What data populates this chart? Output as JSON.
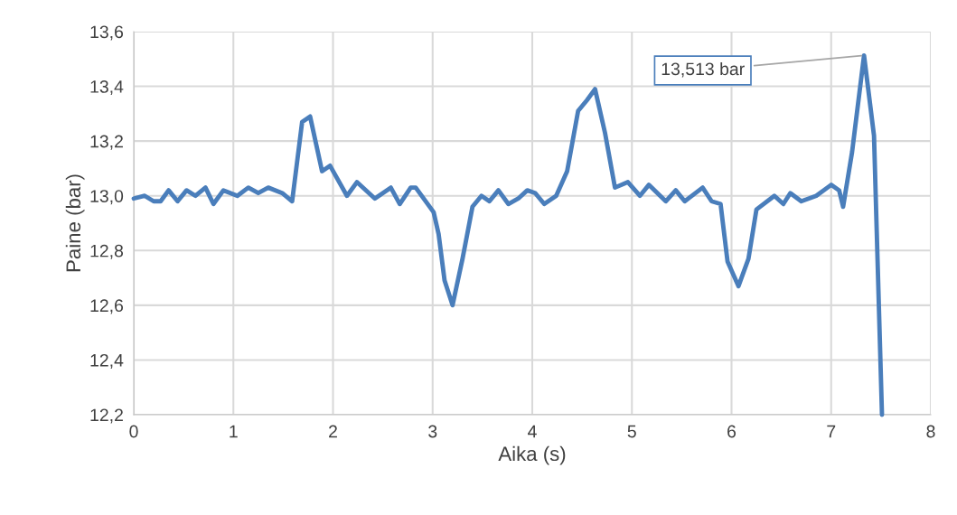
{
  "chart_data": {
    "type": "line",
    "xlabel": "Aika (s)",
    "ylabel": "Paine (bar)",
    "x": [
      0,
      0.11,
      0.2,
      0.27,
      0.35,
      0.44,
      0.53,
      0.62,
      0.72,
      0.8,
      0.9,
      1.04,
      1.15,
      1.25,
      1.35,
      1.49,
      1.59,
      1.69,
      1.77,
      1.89,
      1.97,
      2.14,
      2.24,
      2.42,
      2.58,
      2.67,
      2.78,
      2.83,
      3.01,
      3.06,
      3.12,
      3.2,
      3.3,
      3.4,
      3.49,
      3.57,
      3.66,
      3.76,
      3.86,
      3.95,
      4.03,
      4.12,
      4.24,
      4.35,
      4.46,
      4.55,
      4.63,
      4.73,
      4.83,
      4.96,
      5.08,
      5.17,
      5.34,
      5.44,
      5.53,
      5.71,
      5.8,
      5.89,
      5.96,
      6.07,
      6.17,
      6.25,
      6.43,
      6.52,
      6.59,
      6.7,
      6.85,
      7.0,
      7.08,
      7.12,
      7.21,
      7.33,
      7.43,
      7.47,
      7.51
    ],
    "series": [
      {
        "color": "#4a7ebb",
        "values": [
          12.99,
          13.0,
          12.98,
          12.98,
          13.02,
          12.98,
          13.02,
          13.0,
          13.03,
          12.97,
          13.02,
          13.0,
          13.03,
          13.01,
          13.03,
          13.01,
          12.98,
          13.27,
          13.29,
          13.09,
          13.11,
          13.0,
          13.05,
          12.99,
          13.03,
          12.97,
          13.03,
          13.03,
          12.94,
          12.86,
          12.69,
          12.6,
          12.77,
          12.96,
          13.0,
          12.98,
          13.02,
          12.97,
          12.99,
          13.02,
          13.01,
          12.97,
          13.0,
          13.09,
          13.31,
          13.35,
          13.39,
          13.23,
          13.03,
          13.05,
          13.0,
          13.04,
          12.98,
          13.02,
          12.98,
          13.03,
          12.98,
          12.97,
          12.76,
          12.67,
          12.77,
          12.95,
          13.0,
          12.97,
          13.01,
          12.98,
          13.0,
          13.04,
          13.02,
          12.96,
          13.16,
          13.513,
          13.22,
          12.71,
          12.2
        ]
      }
    ],
    "xlim": [
      0,
      8
    ],
    "xticks": [
      0,
      1,
      2,
      3,
      4,
      5,
      6,
      7,
      8
    ],
    "ylim": [
      12.2,
      13.6
    ],
    "yticks": [
      {
        "value": 12.2,
        "label": "12,2"
      },
      {
        "value": 12.4,
        "label": "12,4"
      },
      {
        "value": 12.6,
        "label": "12,6"
      },
      {
        "value": 12.8,
        "label": "12,8"
      },
      {
        "value": 13.0,
        "label": "13,0"
      },
      {
        "value": 13.2,
        "label": "13,2"
      },
      {
        "value": 13.4,
        "label": "13,4"
      },
      {
        "value": 13.6,
        "label": "13,6"
      }
    ],
    "grid": true,
    "annotations": [
      {
        "text": "13,513 bar",
        "x": 7.33,
        "y": 13.513
      }
    ]
  }
}
